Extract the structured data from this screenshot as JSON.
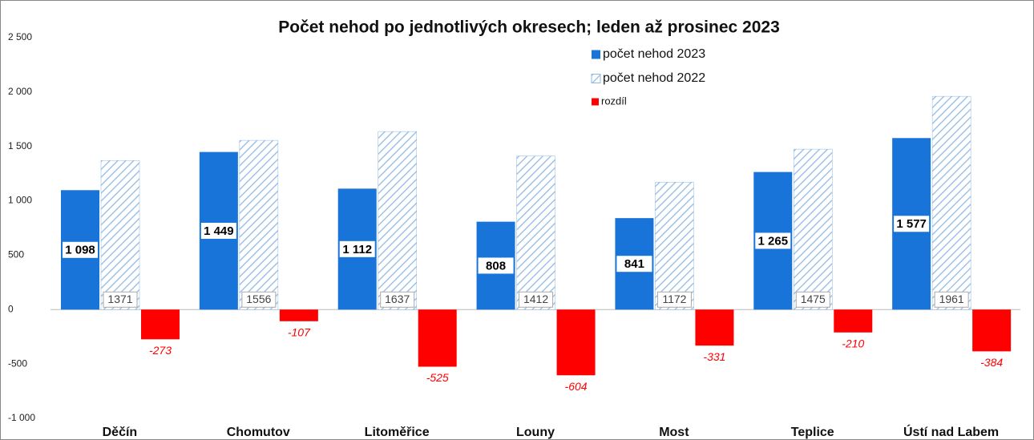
{
  "chart_data": {
    "type": "bar",
    "title": "Počet nehod po jednotlivých okresech; leden až prosinec 2023",
    "categories": [
      "Děčín",
      "Chomutov",
      "Litoměřice",
      "Louny",
      "Most",
      "Teplice",
      "Ústí nad Labem"
    ],
    "series": [
      {
        "name": "počet nehod 2023",
        "color": "#1874d8",
        "values": [
          1098,
          1449,
          1112,
          808,
          841,
          1265,
          1577
        ],
        "value_labels": [
          "1 098",
          "1 449",
          "1 112",
          "808",
          "841",
          "1 265",
          "1 577"
        ]
      },
      {
        "name": "počet nehod 2022",
        "color": "#8fb8e4",
        "hatch": true,
        "values": [
          1371,
          1556,
          1637,
          1412,
          1172,
          1475,
          1961
        ]
      },
      {
        "name": "rozdíl",
        "color": "#ff0000",
        "values": [
          -273,
          -107,
          -525,
          -604,
          -331,
          -210,
          -384
        ]
      }
    ],
    "ylim": [
      -1000,
      2500
    ],
    "yticks": [
      {
        "value": -1000,
        "label": "-1 000"
      },
      -500,
      0,
      500,
      {
        "value": 1000,
        "label": "1 000"
      },
      {
        "value": 1500,
        "label": "1 500"
      },
      {
        "value": 2000,
        "label": "2 000"
      },
      {
        "value": 2500,
        "label": "2 500"
      }
    ],
    "grid": false,
    "legend": "top-right"
  }
}
